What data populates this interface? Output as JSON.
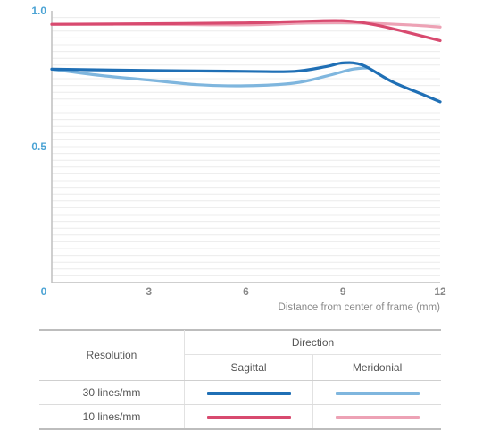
{
  "chart_data": {
    "type": "line",
    "title": "",
    "xlabel": "Distance from center of frame (mm)",
    "ylabel": "",
    "xlim": [
      0,
      12
    ],
    "ylim": [
      0,
      1
    ],
    "x_ticks": [
      "0",
      "3",
      "6",
      "9",
      "12"
    ],
    "y_ticks": [
      "0.5",
      "1.0"
    ],
    "grid": true,
    "series": [
      {
        "name": "10 lines/mm Sagittal",
        "color": "#d84a6f",
        "x": [
          0,
          3,
          6,
          7.5,
          9,
          10,
          11,
          12
        ],
        "y": [
          0.95,
          0.952,
          0.955,
          0.96,
          0.963,
          0.948,
          0.92,
          0.89
        ]
      },
      {
        "name": "10 lines/mm Meridonial",
        "color": "#eda2b5",
        "x": [
          0,
          3,
          6,
          8,
          9.5,
          11,
          12
        ],
        "y": [
          0.95,
          0.95,
          0.948,
          0.955,
          0.955,
          0.948,
          0.94
        ]
      },
      {
        "name": "30 lines/mm Sagittal",
        "color": "#1f6fb5",
        "x": [
          0,
          3,
          6,
          7.5,
          8.5,
          9,
          9.6,
          10.5,
          11.5,
          12
        ],
        "y": [
          0.785,
          0.78,
          0.777,
          0.777,
          0.795,
          0.808,
          0.8,
          0.74,
          0.69,
          0.665
        ]
      },
      {
        "name": "30 lines/mm Meridonial",
        "color": "#7fb6de",
        "x": [
          0,
          1.5,
          3,
          4.5,
          6,
          7.5,
          8.5,
          9.3,
          9.8
        ],
        "y": [
          0.785,
          0.762,
          0.745,
          0.728,
          0.724,
          0.734,
          0.76,
          0.785,
          0.79
        ]
      }
    ],
    "colors": {
      "y_tick": "#4ba3d4",
      "x_tick": "#888888",
      "axis": "#bfbfbf",
      "grid": "#ececec"
    }
  },
  "legend": {
    "header_resolution": "Resolution",
    "header_direction": "Direction",
    "header_sagittal": "Sagittal",
    "header_meridional": "Meridonial",
    "row_30": "30 lines/mm",
    "row_10": "10 lines/mm"
  }
}
